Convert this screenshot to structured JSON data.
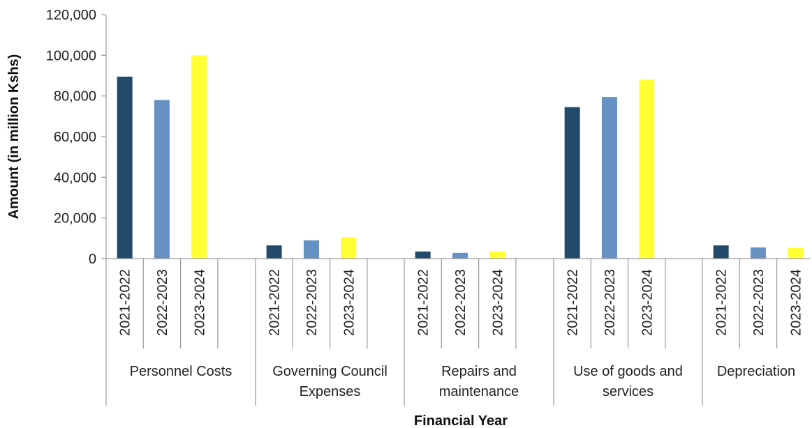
{
  "chart_data": {
    "type": "bar",
    "title": "",
    "xlabel": "Financial Year",
    "ylabel": "Amount (in  million Kshs)",
    "ylim": [
      0,
      120000
    ],
    "yticks": [
      "0",
      "20,000",
      "40,000",
      "60,000",
      "80,000",
      "100,000",
      "120,000"
    ],
    "legend": "none",
    "grid": false,
    "groups": [
      {
        "label_lines": [
          "Personnel Costs"
        ],
        "sub": [
          "2021-2022",
          "2022-2023",
          "2023-2024"
        ],
        "values": [
          89500,
          78000,
          100000
        ]
      },
      {
        "label_lines": [
          "Governing Council",
          "Expenses"
        ],
        "sub": [
          "2021-2022",
          "2022-2023",
          "2023-2024"
        ],
        "values": [
          6500,
          9000,
          10500
        ]
      },
      {
        "label_lines": [
          "Repairs and",
          "maintenance"
        ],
        "sub": [
          "2021-2022",
          "2022-2023",
          "2023-2024"
        ],
        "values": [
          3500,
          2800,
          3500
        ]
      },
      {
        "label_lines": [
          "Use of goods and",
          "services"
        ],
        "sub": [
          "2021-2022",
          "2022-2023",
          "2023-2024"
        ],
        "values": [
          74500,
          79500,
          88000
        ]
      },
      {
        "label_lines": [
          "Depreciation"
        ],
        "sub": [
          "2021-2022",
          "2022-2023",
          "2023-2024"
        ],
        "values": [
          6500,
          5500,
          5200
        ]
      }
    ],
    "colors": {
      "2021-2022": "#234a6b",
      "2022-2023": "#6592c2",
      "2023-2024": "#ffff33"
    }
  }
}
